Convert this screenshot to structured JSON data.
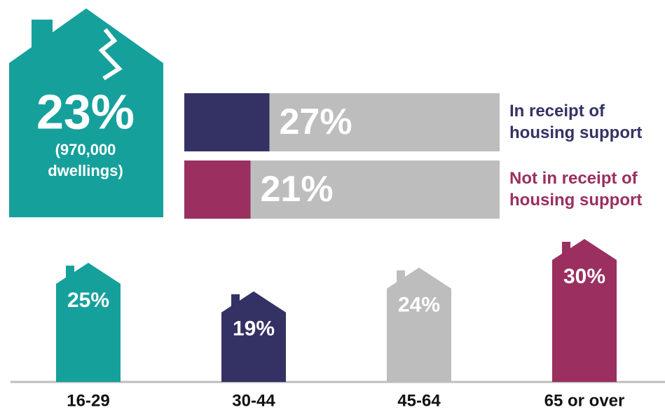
{
  "headline": {
    "value": 23,
    "value_label": "23%",
    "detail_lines": [
      "(970,000",
      "dwellings)"
    ],
    "color": "#16a09b"
  },
  "chart_data": [
    {
      "type": "hbar",
      "xlim": [
        0,
        100
      ],
      "series": [
        {
          "name": "In receipt of housing support",
          "color": "#343264",
          "values": [
            27
          ],
          "value_labels": [
            "27%"
          ]
        },
        {
          "name": "Not in receipt of housing support",
          "color": "#9a2f60",
          "values": [
            21
          ],
          "value_labels": [
            "21%"
          ]
        }
      ]
    },
    {
      "type": "house",
      "categories": [
        "16-29",
        "30-44",
        "45-64",
        "65 or over"
      ],
      "values": [
        25,
        19,
        24,
        30
      ],
      "value_labels": [
        "25%",
        "19%",
        "24%",
        "30%"
      ],
      "colors": [
        "#16a09b",
        "#343264",
        "#bdbdbd",
        "#9a2f60"
      ]
    }
  ]
}
